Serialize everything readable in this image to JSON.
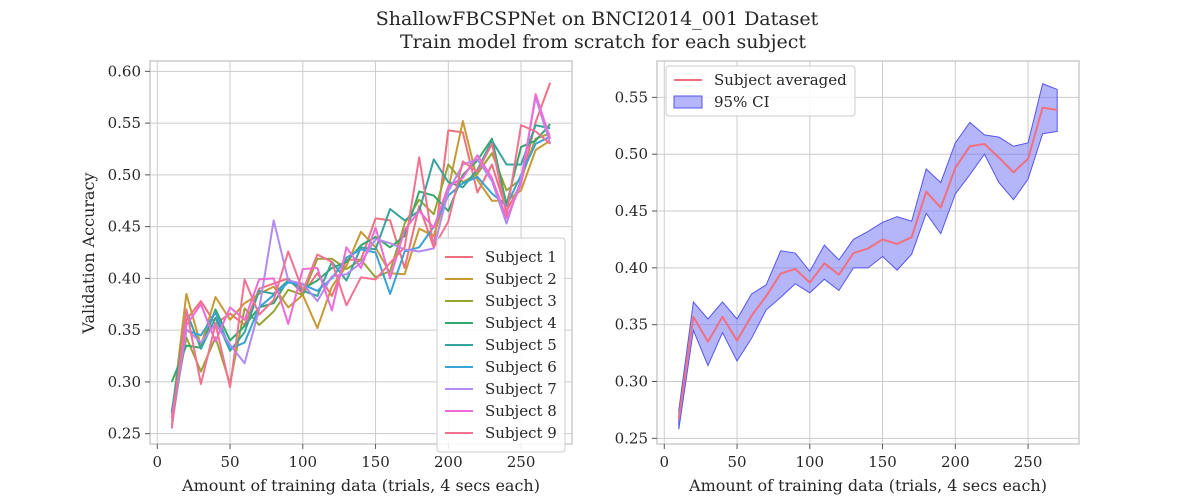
{
  "figure": {
    "title_line1": "ShallowFBCSPNet on BNCI2014_001 Dataset",
    "title_line2": "Train model from scratch for each subject"
  },
  "chart_data": [
    {
      "type": "line",
      "xlabel": "Amount of training data (trials, 4 secs each)",
      "ylabel": "Validation Accuracy",
      "xlim": [
        -5,
        285
      ],
      "ylim": [
        0.24,
        0.61
      ],
      "xticks": [
        0,
        50,
        100,
        150,
        200,
        250
      ],
      "xtick_labels": [
        "0",
        "50",
        "100",
        "150",
        "200",
        "250"
      ],
      "yticks": [
        0.25,
        0.3,
        0.35,
        0.4,
        0.45,
        0.5,
        0.55,
        0.6
      ],
      "ytick_labels": [
        "0.25",
        "0.30",
        "0.35",
        "0.40",
        "0.45",
        "0.50",
        "0.55",
        "0.60"
      ],
      "grid": true,
      "legend_position": "lower-right",
      "x": [
        10,
        20,
        30,
        40,
        50,
        60,
        70,
        80,
        90,
        100,
        110,
        120,
        130,
        140,
        150,
        160,
        170,
        180,
        190,
        200,
        210,
        220,
        230,
        240,
        250,
        260,
        270
      ],
      "series": [
        {
          "name": "Subject 1",
          "color": "#f0707f",
          "values": [
            0.272,
            0.36,
            0.378,
            0.356,
            0.366,
            0.355,
            0.39,
            0.395,
            0.4,
            0.385,
            0.405,
            0.383,
            0.418,
            0.418,
            0.458,
            0.456,
            0.41,
            0.47,
            0.43,
            0.543,
            0.541,
            0.483,
            0.51,
            0.465,
            0.492,
            0.551,
            0.589
          ]
        },
        {
          "name": "Subject 2",
          "color": "#c79a35",
          "values": [
            0.268,
            0.385,
            0.335,
            0.382,
            0.36,
            0.376,
            0.385,
            0.392,
            0.372,
            0.384,
            0.352,
            0.392,
            0.412,
            0.445,
            0.43,
            0.405,
            0.404,
            0.448,
            0.441,
            0.486,
            0.552,
            0.495,
            0.475,
            0.475,
            0.485,
            0.524,
            0.533
          ]
        },
        {
          "name": "Subject 3",
          "color": "#97a431",
          "values": [
            0.265,
            0.343,
            0.31,
            0.343,
            0.298,
            0.371,
            0.355,
            0.368,
            0.389,
            0.384,
            0.419,
            0.419,
            0.409,
            0.418,
            0.401,
            0.407,
            0.453,
            0.476,
            0.462,
            0.51,
            0.493,
            0.501,
            0.521,
            0.485,
            0.496,
            0.535,
            0.54
          ]
        },
        {
          "name": "Subject 4",
          "color": "#35a86b",
          "values": [
            0.3,
            0.335,
            0.333,
            0.37,
            0.34,
            0.354,
            0.372,
            0.376,
            0.399,
            0.39,
            0.398,
            0.41,
            0.416,
            0.432,
            0.44,
            0.43,
            0.441,
            0.484,
            0.48,
            0.465,
            0.5,
            0.514,
            0.535,
            0.471,
            0.527,
            0.533,
            0.549
          ]
        },
        {
          "name": "Subject 5",
          "color": "#38a39c",
          "values": [
            0.27,
            0.368,
            0.332,
            0.362,
            0.33,
            0.348,
            0.388,
            0.385,
            0.398,
            0.388,
            0.383,
            0.416,
            0.398,
            0.43,
            0.428,
            0.467,
            0.456,
            0.465,
            0.515,
            0.493,
            0.488,
            0.505,
            0.533,
            0.51,
            0.51,
            0.548,
            0.545
          ]
        },
        {
          "name": "Subject 6",
          "color": "#3ba2d6",
          "values": [
            0.258,
            0.35,
            0.345,
            0.367,
            0.332,
            0.338,
            0.372,
            0.384,
            0.396,
            0.394,
            0.388,
            0.4,
            0.42,
            0.428,
            0.425,
            0.385,
            0.426,
            0.43,
            0.45,
            0.48,
            0.492,
            0.498,
            0.482,
            0.47,
            0.5,
            0.53,
            0.537
          ]
        },
        {
          "name": "Subject 7",
          "color": "#b18bf0",
          "values": [
            0.262,
            0.351,
            0.338,
            0.356,
            0.336,
            0.318,
            0.37,
            0.456,
            0.398,
            0.395,
            0.378,
            0.402,
            0.404,
            0.415,
            0.438,
            0.434,
            0.428,
            0.426,
            0.429,
            0.484,
            0.51,
            0.515,
            0.494,
            0.453,
            0.496,
            0.575,
            0.53
          ]
        },
        {
          "name": "Subject 8",
          "color": "#ee6bd8",
          "values": [
            0.265,
            0.355,
            0.375,
            0.339,
            0.372,
            0.36,
            0.399,
            0.4,
            0.356,
            0.409,
            0.41,
            0.369,
            0.43,
            0.41,
            0.449,
            0.4,
            0.447,
            0.465,
            0.449,
            0.489,
            0.497,
            0.519,
            0.497,
            0.458,
            0.491,
            0.578,
            0.535
          ]
        },
        {
          "name": "Subject 9",
          "color": "#f27292",
          "values": [
            0.255,
            0.37,
            0.298,
            0.356,
            0.295,
            0.399,
            0.365,
            0.379,
            0.426,
            0.388,
            0.423,
            0.416,
            0.374,
            0.401,
            0.399,
            0.415,
            0.43,
            0.517,
            0.43,
            0.455,
            0.513,
            0.503,
            0.53,
            0.461,
            0.548,
            0.542,
            0.53
          ]
        }
      ],
      "legend_order": [
        0,
        1,
        2,
        3,
        4,
        5,
        6,
        7,
        8
      ],
      "legend_colors": [
        "#f0707f",
        "#c79a35",
        "#97a431",
        "#35a86b",
        "#38a39c",
        "#3ba2d6",
        "#b18bf0",
        "#ee6bd8",
        "#f27292"
      ]
    },
    {
      "type": "line",
      "xlabel": "Amount of training data (trials, 4 secs each)",
      "ylabel": "",
      "xlim": [
        -5,
        285
      ],
      "ylim": [
        0.245,
        0.582
      ],
      "xticks": [
        0,
        50,
        100,
        150,
        200,
        250
      ],
      "xtick_labels": [
        "0",
        "50",
        "100",
        "150",
        "200",
        "250"
      ],
      "yticks": [
        0.25,
        0.3,
        0.35,
        0.4,
        0.45,
        0.5,
        0.55
      ],
      "ytick_labels": [
        "0.25",
        "0.30",
        "0.35",
        "0.40",
        "0.45",
        "0.50",
        "0.55"
      ],
      "grid": true,
      "legend_position": "top-left",
      "x": [
        10,
        20,
        30,
        40,
        50,
        60,
        70,
        80,
        90,
        100,
        110,
        120,
        130,
        140,
        150,
        160,
        170,
        180,
        190,
        200,
        210,
        220,
        230,
        240,
        250,
        260,
        270
      ],
      "series": [
        {
          "name": "Subject averaged",
          "color": "#f0707f",
          "values": [
            0.267,
            0.357,
            0.335,
            0.357,
            0.336,
            0.358,
            0.375,
            0.395,
            0.399,
            0.387,
            0.404,
            0.394,
            0.413,
            0.417,
            0.425,
            0.421,
            0.427,
            0.467,
            0.453,
            0.488,
            0.507,
            0.509,
            0.497,
            0.484,
            0.496,
            0.541,
            0.539
          ]
        }
      ],
      "ci": {
        "name": "95% CI",
        "fill_color": "#6b6cf5",
        "edge_color": "#5556ee",
        "lower": [
          0.258,
          0.345,
          0.314,
          0.343,
          0.318,
          0.338,
          0.363,
          0.374,
          0.386,
          0.378,
          0.39,
          0.38,
          0.4,
          0.4,
          0.41,
          0.398,
          0.412,
          0.448,
          0.43,
          0.465,
          0.482,
          0.5,
          0.475,
          0.46,
          0.478,
          0.518,
          0.52
        ],
        "upper": [
          0.275,
          0.37,
          0.355,
          0.37,
          0.355,
          0.377,
          0.385,
          0.415,
          0.413,
          0.397,
          0.42,
          0.407,
          0.425,
          0.432,
          0.44,
          0.445,
          0.441,
          0.487,
          0.475,
          0.51,
          0.528,
          0.517,
          0.515,
          0.507,
          0.51,
          0.562,
          0.557
        ]
      }
    }
  ]
}
